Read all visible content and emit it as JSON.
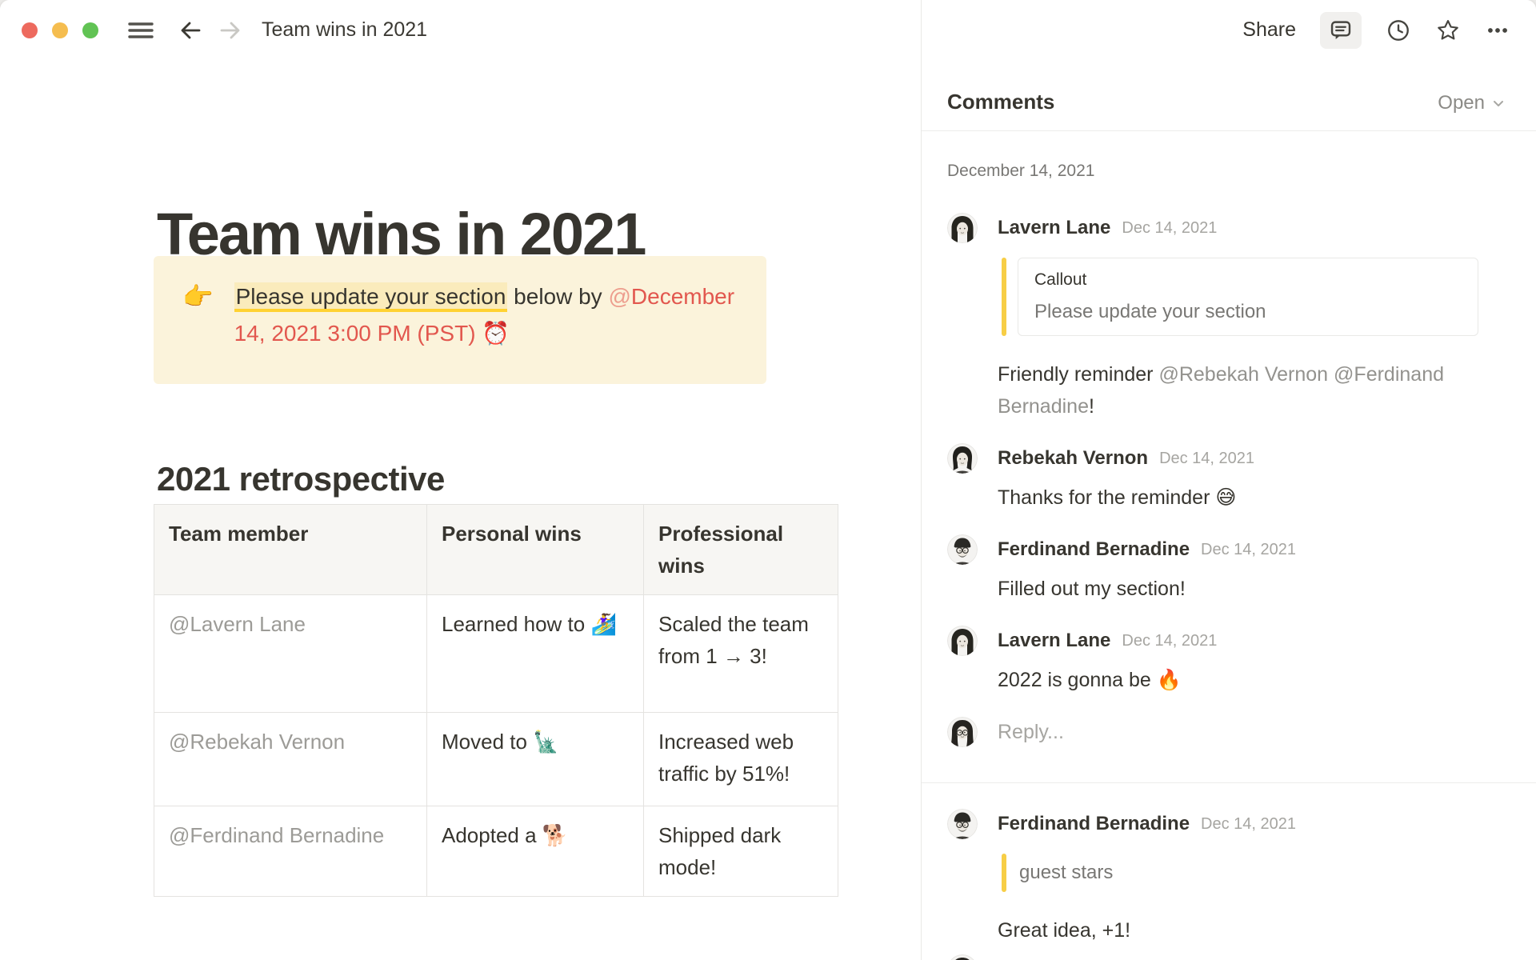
{
  "window": {
    "title": "Team wins in 2021",
    "controls": [
      "close",
      "minimize",
      "zoom"
    ]
  },
  "topbar": {
    "share_label": "Share",
    "nav_icons": [
      "hamburger-icon",
      "back-arrow-icon",
      "forward-arrow-icon"
    ],
    "action_icons": [
      "comment-bubble-icon",
      "clock-icon",
      "star-icon",
      "ellipsis-icon"
    ]
  },
  "document": {
    "title": "Team wins in 2021",
    "callout": {
      "icon_emoji": "👉",
      "highlight": "Please update your section",
      "plain": " below by ",
      "mention_at": "@",
      "reminder": "December 14, 2021 3:00 PM (PST) ⏰"
    },
    "section_heading": "2021 retrospective",
    "table": {
      "headers": [
        "Team member",
        "Personal wins",
        "Professional wins"
      ],
      "rows": [
        [
          "@Lavern Lane",
          "Learned how to 🏄‍♀️",
          "Scaled the team from 1 → 3!"
        ],
        [
          "@Rebekah Vernon",
          "Moved to 🗽",
          "Increased web traffic by 51%!"
        ],
        [
          "@Ferdinand Bernadine",
          "Adopted a 🐕",
          "Shipped dark mode!"
        ]
      ]
    }
  },
  "comments_panel": {
    "title": "Comments",
    "filter": "Open",
    "date_group": "December 14, 2021",
    "threads": [
      {
        "comments": [
          {
            "author": "Lavern Lane",
            "date": "Dec 14, 2021",
            "avatar": "lavern",
            "quote": {
              "style": "box",
              "block_type": "Callout",
              "text": "Please update your section"
            },
            "body": [
              {
                "text": "Friendly reminder ",
                "style": "plain"
              },
              {
                "text": "@Rebekah Vernon",
                "style": "mention"
              },
              {
                "text": " ",
                "style": "plain"
              },
              {
                "text": "@Ferdinand Bernadine",
                "style": "mention"
              },
              {
                "text": "!",
                "style": "plain"
              }
            ]
          },
          {
            "author": "Rebekah Vernon",
            "date": "Dec 14, 2021",
            "avatar": "rebekah",
            "body": [
              {
                "text": "Thanks for the reminder 😅",
                "style": "plain"
              }
            ]
          },
          {
            "author": "Ferdinand Bernadine",
            "date": "Dec 14, 2021",
            "avatar": "ferdinand",
            "body": [
              {
                "text": "Filled out my section!",
                "style": "plain"
              }
            ]
          },
          {
            "author": "Lavern Lane",
            "date": "Dec 14, 2021",
            "avatar": "lavern",
            "body": [
              {
                "text": "2022 is gonna be 🔥",
                "style": "plain"
              }
            ]
          }
        ],
        "reply_placeholder": "Reply...",
        "reply_avatar": "user"
      },
      {
        "comments": [
          {
            "author": "Ferdinand Bernadine",
            "date": "Dec 14, 2021",
            "avatar": "ferdinand",
            "quote": {
              "style": "bar",
              "text": "guest stars"
            },
            "body": [
              {
                "text": "Great idea, +1!",
                "style": "plain"
              }
            ]
          }
        ],
        "reply_placeholder": "",
        "reply_avatar": "user",
        "reply_partial": true
      }
    ]
  }
}
